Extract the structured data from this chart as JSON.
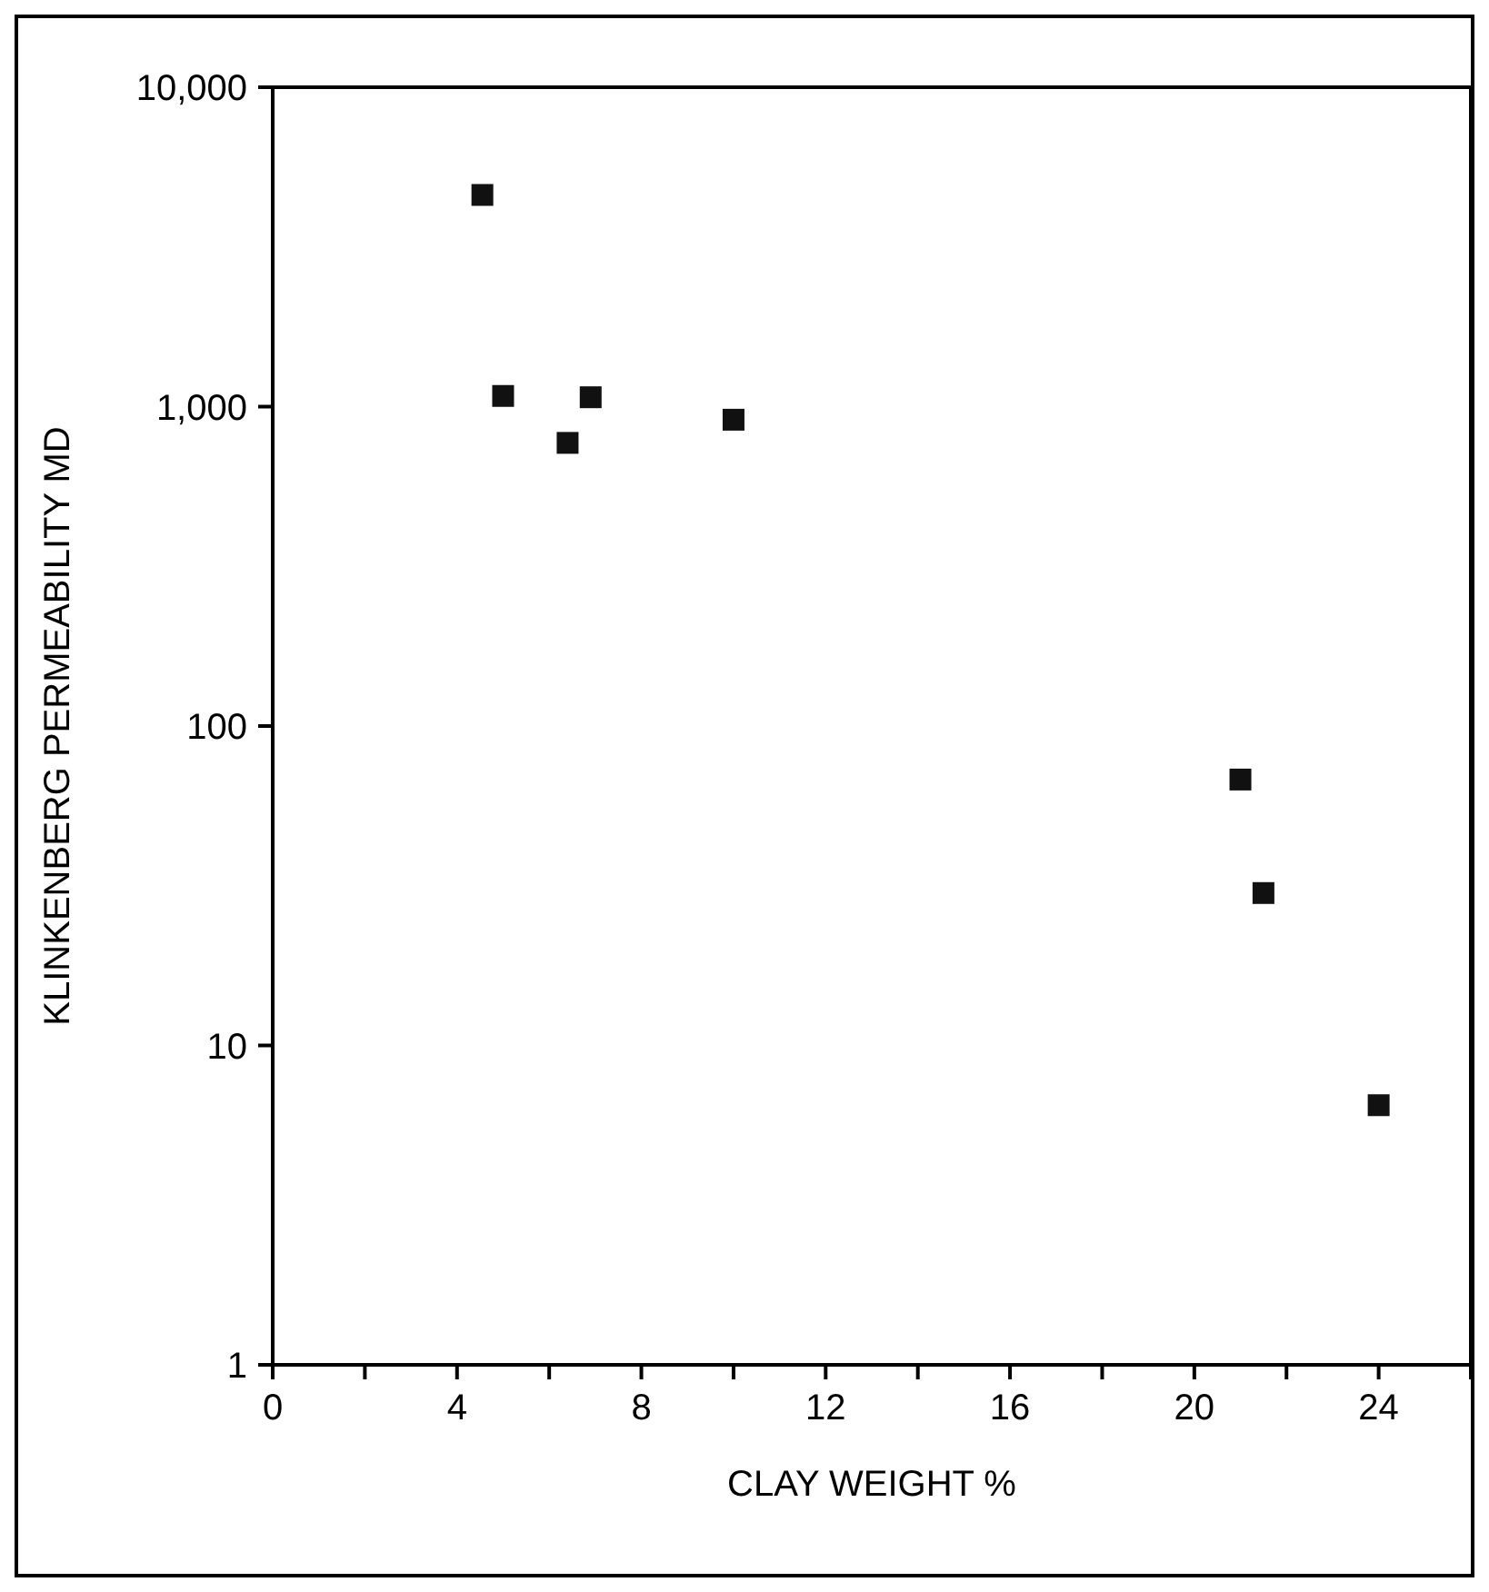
{
  "chart_data": {
    "type": "scatter",
    "xlabel": "CLAY WEIGHT %",
    "ylabel": "KLINKENBERG PERMEABILITY MD",
    "x": [
      4.55,
      5.0,
      6.4,
      6.9,
      10.0,
      21.0,
      21.5,
      24.0
    ],
    "series": [
      {
        "color": "#111111",
        "values": [
          4600,
          1080,
          770,
          1070,
          910,
          68,
          30,
          6.5
        ]
      }
    ],
    "marker": "square",
    "log": "y",
    "grid": false,
    "xlim": [
      0,
      26
    ],
    "ylim": [
      1,
      10000
    ],
    "xticks": [
      0,
      {
        "value": 2,
        "label": null
      },
      4,
      {
        "value": 6,
        "label": null
      },
      8,
      {
        "value": 10,
        "label": null
      },
      12,
      {
        "value": 14,
        "label": null
      },
      16,
      {
        "value": 18,
        "label": null
      },
      20,
      {
        "value": 22,
        "label": null
      },
      24,
      {
        "value": 26,
        "label": null
      }
    ],
    "yticks": [
      1,
      10,
      100,
      {
        "value": 1000,
        "label": "1,000"
      },
      {
        "value": 10000,
        "label": "10,000"
      }
    ]
  }
}
